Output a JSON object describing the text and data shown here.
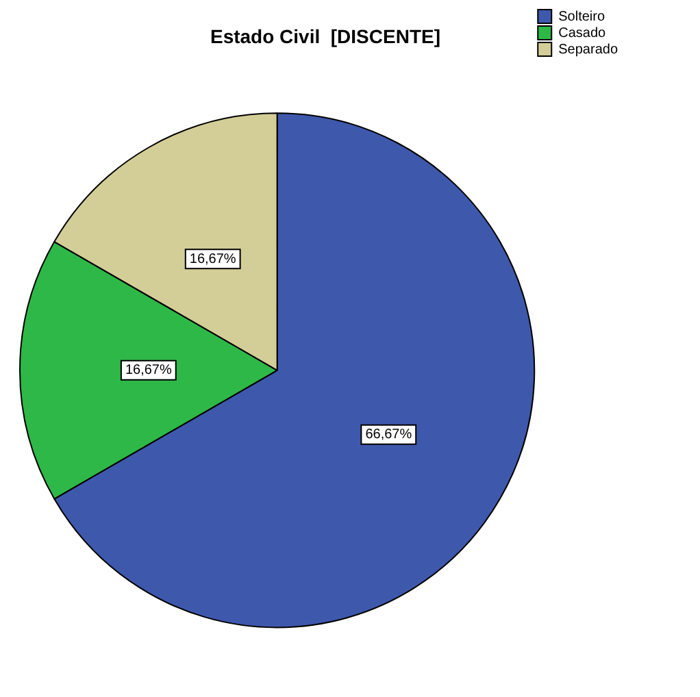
{
  "chart_data": {
    "type": "pie",
    "title": "Estado Civil  [DISCENTE]",
    "categories": [
      "Solteiro",
      "Casado",
      "Separado"
    ],
    "values": [
      66.67,
      16.67,
      16.67
    ],
    "value_labels": [
      "66,67%",
      "16,67%",
      "16,67%"
    ],
    "colors": [
      "#3e58ac",
      "#2eb848",
      "#d3ce97"
    ],
    "legend": "top right"
  }
}
